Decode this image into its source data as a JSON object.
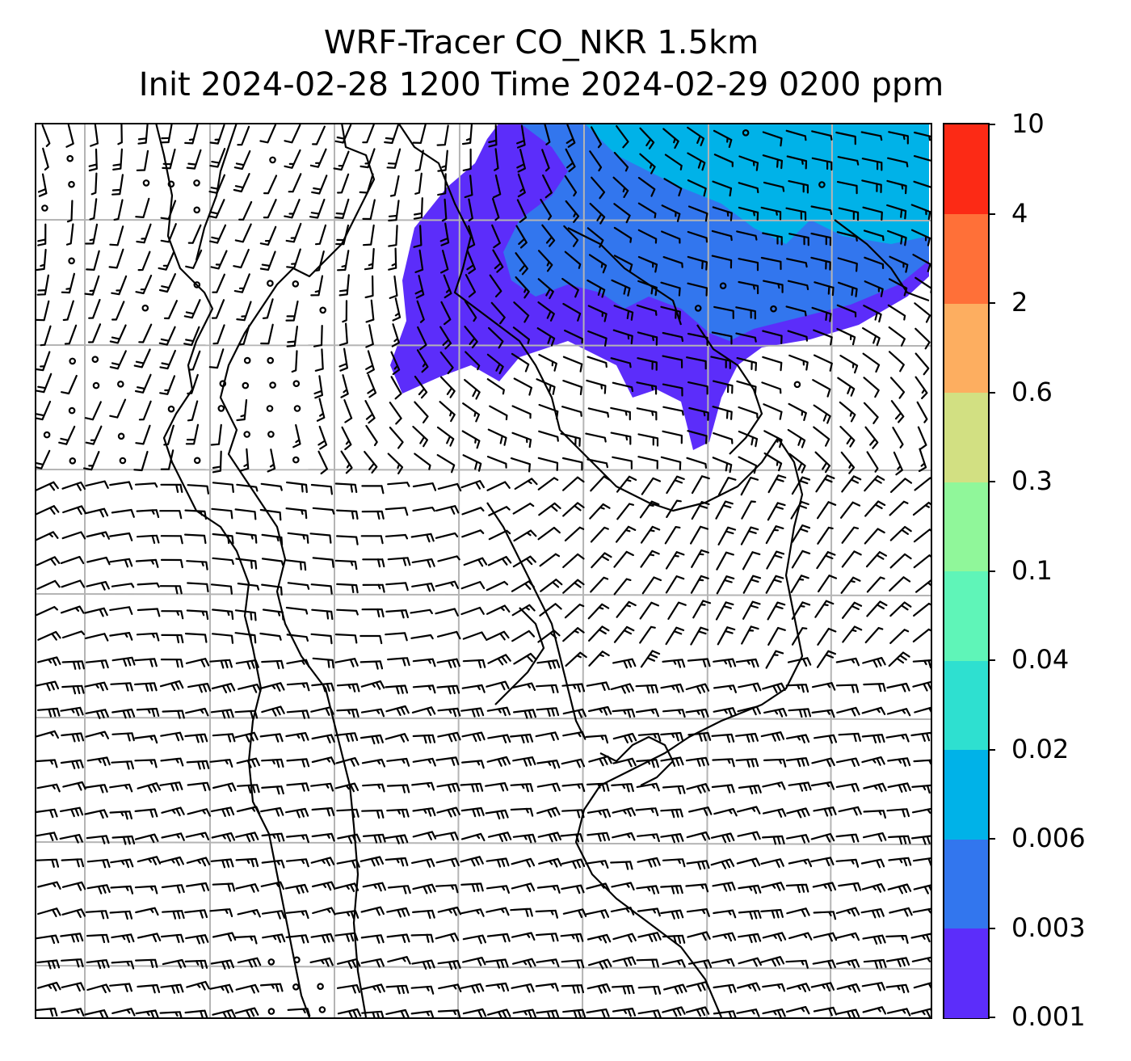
{
  "title": {
    "line1": "WRF-Tracer CO_NKR 1.5km",
    "line2": "Init 2024-02-28 1200 Time 2024-02-29 0200 ppm"
  },
  "colorbar": {
    "unit": "ppm",
    "levels": [
      {
        "label": "0.001",
        "color": "#5c2dfa"
      },
      {
        "label": "0.003",
        "color": "#3276ee"
      },
      {
        "label": "0.006",
        "color": "#00b2e8"
      },
      {
        "label": "0.02",
        "color": "#2ee0d0"
      },
      {
        "label": "0.04",
        "color": "#5ff5b8"
      },
      {
        "label": "0.1",
        "color": "#90f79a"
      },
      {
        "label": "0.3",
        "color": "#d2e082"
      },
      {
        "label": "0.6",
        "color": "#fdae60"
      },
      {
        "label": "2",
        "color": "#ff7038"
      },
      {
        "label": "4",
        "color": "#fc2a15"
      },
      {
        "label": "10",
        "color": ""
      }
    ]
  },
  "map": {
    "fields": [
      "CO tracer concentration (filled contours)",
      "wind barbs",
      "coastlines",
      "lat/lon gridlines"
    ],
    "plume_levels": [
      "0.001",
      "0.003",
      "0.006"
    ],
    "gridline_color": "#b4b4b4"
  }
}
